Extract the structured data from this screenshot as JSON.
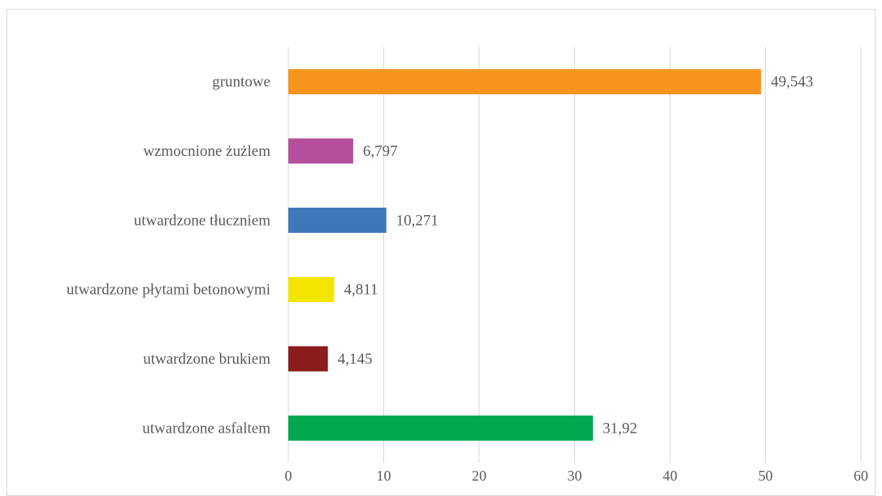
{
  "chart_data": {
    "type": "bar",
    "orientation": "horizontal",
    "title": "",
    "xlabel": "",
    "ylabel": "",
    "xlim": [
      0,
      60
    ],
    "x_ticks": [
      0,
      10,
      20,
      30,
      40,
      50,
      60
    ],
    "grid": true,
    "legend": "none",
    "categories": [
      "gruntowe",
      "wzmocnione żużlem",
      "utwardzone tłuczniem",
      "utwardzone płytami betonowymi",
      "utwardzone brukiem",
      "utwardzone asfaltem"
    ],
    "values": [
      49.543,
      6.797,
      10.271,
      4.811,
      4.145,
      31.92
    ],
    "value_labels": [
      "49,543",
      "6,797",
      "10,271",
      "4,811",
      "4,145",
      "31,92"
    ],
    "colors": [
      "#f7941d",
      "#b54e9b",
      "#3e78b8",
      "#f2e500",
      "#8b1c1c",
      "#00a84f"
    ]
  }
}
